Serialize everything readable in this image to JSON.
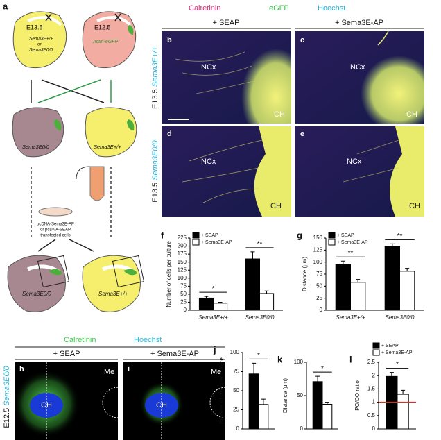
{
  "panel_a": {
    "label": "a",
    "donor_1": {
      "age": "E13.5",
      "genotype_lines": [
        "Sema3E+/+",
        "or",
        "Sema3E0/0"
      ]
    },
    "donor_2": {
      "age": "E12.5",
      "genotype": "Actin-eGFP"
    },
    "explant_1": "Sema3E0/0",
    "explant_2": "Sema3E+/+",
    "cells": [
      "pcDNA-Sema3E-AP",
      "or pcDNA-SEAP",
      "transfected cells"
    ],
    "coculture_1": "Sema3E0/0",
    "coculture_2": "Sema3E+/+"
  },
  "stain_header_1": [
    {
      "text": "Calretinin",
      "color": "#e4287c"
    },
    {
      "text": "eGFP",
      "color": "#3cb84a"
    },
    {
      "text": "Hoechst",
      "color": "#22b2d6"
    }
  ],
  "conditions_1": [
    "+ SEAP",
    "+ Sema3E-AP"
  ],
  "rows_1": [
    {
      "age": "E13.5",
      "genotype": "Sema3E+/+"
    },
    {
      "age": "E13.5",
      "genotype": "Sema3E0/0"
    }
  ],
  "images_1": [
    {
      "label": "b",
      "regions": [
        "NCx",
        "CH"
      ]
    },
    {
      "label": "c",
      "regions": [
        "NCx",
        "CH"
      ]
    },
    {
      "label": "d",
      "regions": [
        "NCx",
        "CH"
      ]
    },
    {
      "label": "e",
      "regions": [
        "NCx",
        "CH"
      ]
    }
  ],
  "stain_header_2": [
    {
      "text": "Calretinin",
      "color": "#3cc84a"
    },
    {
      "text": "Hoechst",
      "color": "#22c0e4"
    }
  ],
  "conditions_2": [
    "+ SEAP",
    "+ Sema3E-AP"
  ],
  "row_2": {
    "age": "E12.5",
    "genotype": "Sema3E0/0"
  },
  "images_2": [
    {
      "label": "h",
      "regions": [
        "CH",
        "Me"
      ]
    },
    {
      "label": "i",
      "regions": [
        "CH",
        "Me"
      ]
    }
  ],
  "chart_data": [
    {
      "type": "bar",
      "panel_label": "f",
      "ylabel": "Number of cells per culture",
      "categories": [
        "Sema3E+/+",
        "Sema3E0/0"
      ],
      "series": [
        {
          "name": "+ SEAP",
          "color": "#000000",
          "values": [
            38,
            160
          ],
          "errors": [
            5,
            22
          ]
        },
        {
          "name": "+ Sema3E-AP",
          "color": "#ffffff",
          "values": [
            22,
            52
          ],
          "errors": [
            3,
            8
          ]
        }
      ],
      "significance": [
        "*",
        "**"
      ],
      "ylim": [
        0,
        225
      ],
      "yticks": [
        0,
        25,
        50,
        75,
        100,
        125,
        150,
        175,
        200,
        225
      ],
      "legend": "upper left"
    },
    {
      "type": "bar",
      "panel_label": "g",
      "ylabel": "Distance (μm)",
      "categories": [
        "Sema3E+/+",
        "Sema3E0/0"
      ],
      "series": [
        {
          "name": "+ SEAP",
          "color": "#000000",
          "values": [
            95,
            133
          ],
          "errors": [
            7,
            5
          ]
        },
        {
          "name": "+ Sema3E-AP",
          "color": "#ffffff",
          "values": [
            58,
            81
          ],
          "errors": [
            6,
            6
          ]
        }
      ],
      "significance": [
        "**",
        "**"
      ],
      "ylim": [
        0,
        150
      ],
      "yticks": [
        0,
        25,
        50,
        75,
        100,
        125,
        150
      ],
      "legend": "upper left"
    },
    {
      "type": "bar",
      "panel_label": "j",
      "ylabel": "Number of cells per culture",
      "categories": [
        null
      ],
      "series": [
        {
          "color": "#000000",
          "values": [
            72
          ],
          "errors": [
            14
          ]
        },
        {
          "color": "#ffffff",
          "values": [
            32
          ],
          "errors": [
            7
          ]
        }
      ],
      "significance": [
        "*"
      ],
      "ylim": [
        0,
        100
      ],
      "yticks": [
        0,
        25,
        50,
        75,
        100
      ]
    },
    {
      "type": "bar",
      "panel_label": "k",
      "ylabel": "Distance (μm)",
      "categories": [
        null
      ],
      "series": [
        {
          "color": "#000000",
          "values": [
            71
          ],
          "errors": [
            8
          ]
        },
        {
          "color": "#ffffff",
          "values": [
            37
          ],
          "errors": [
            3
          ]
        }
      ],
      "significance": [
        "*"
      ],
      "ylim": [
        0,
        100
      ],
      "yticks": [
        0,
        50,
        100
      ]
    },
    {
      "type": "bar",
      "panel_label": "l",
      "ylabel": "PO/DO ratio",
      "categories": [
        null
      ],
      "series": [
        {
          "name": "+ SEAP",
          "color": "#000000",
          "values": [
            1.97
          ],
          "errors": [
            0.15
          ]
        },
        {
          "name": "+ Sema3E-AP",
          "color": "#ffffff",
          "values": [
            1.3
          ],
          "errors": [
            0.15
          ]
        }
      ],
      "significance": [
        "*"
      ],
      "ylim": [
        0,
        2.5
      ],
      "yticks": [
        0,
        0.5,
        1,
        1.5,
        2,
        2.5
      ],
      "reference_line": {
        "value": 1,
        "color": "#c0392b"
      },
      "legend": "above"
    }
  ]
}
